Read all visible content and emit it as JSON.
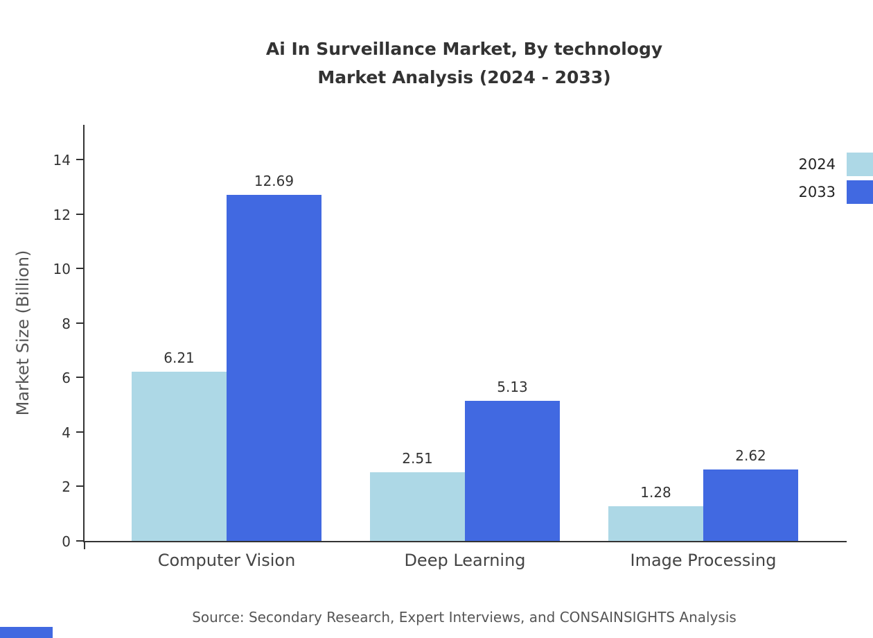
{
  "title": {
    "line1": "Ai In Surveillance Market, By technology",
    "line2": "Market Analysis (2024 - 2033)"
  },
  "source": "Source: Secondary Research, Expert Interviews, and CONSAINSIGHTS Analysis",
  "chart_data": {
    "type": "bar",
    "title": "Ai In Surveillance Market, By technology Market Analysis (2024 - 2033)",
    "categories": [
      "Computer Vision",
      "Deep Learning",
      "Image Processing"
    ],
    "series": [
      {
        "name": "2024",
        "color": "#add8e6",
        "values": [
          6.21,
          2.51,
          1.28
        ]
      },
      {
        "name": "2033",
        "color": "#4169e1",
        "values": [
          12.69,
          5.13,
          2.62
        ]
      }
    ],
    "xlabel": "",
    "ylabel": "Market Size (Billion)",
    "ylim": [
      0,
      15
    ],
    "yticks": [
      0,
      2,
      4,
      6,
      8,
      10,
      12,
      14
    ],
    "grid": false,
    "legend_position": "top-right"
  },
  "legend": {
    "items": [
      {
        "label": "2024",
        "color": "#add8e6"
      },
      {
        "label": "2033",
        "color": "#4169e1"
      }
    ]
  }
}
